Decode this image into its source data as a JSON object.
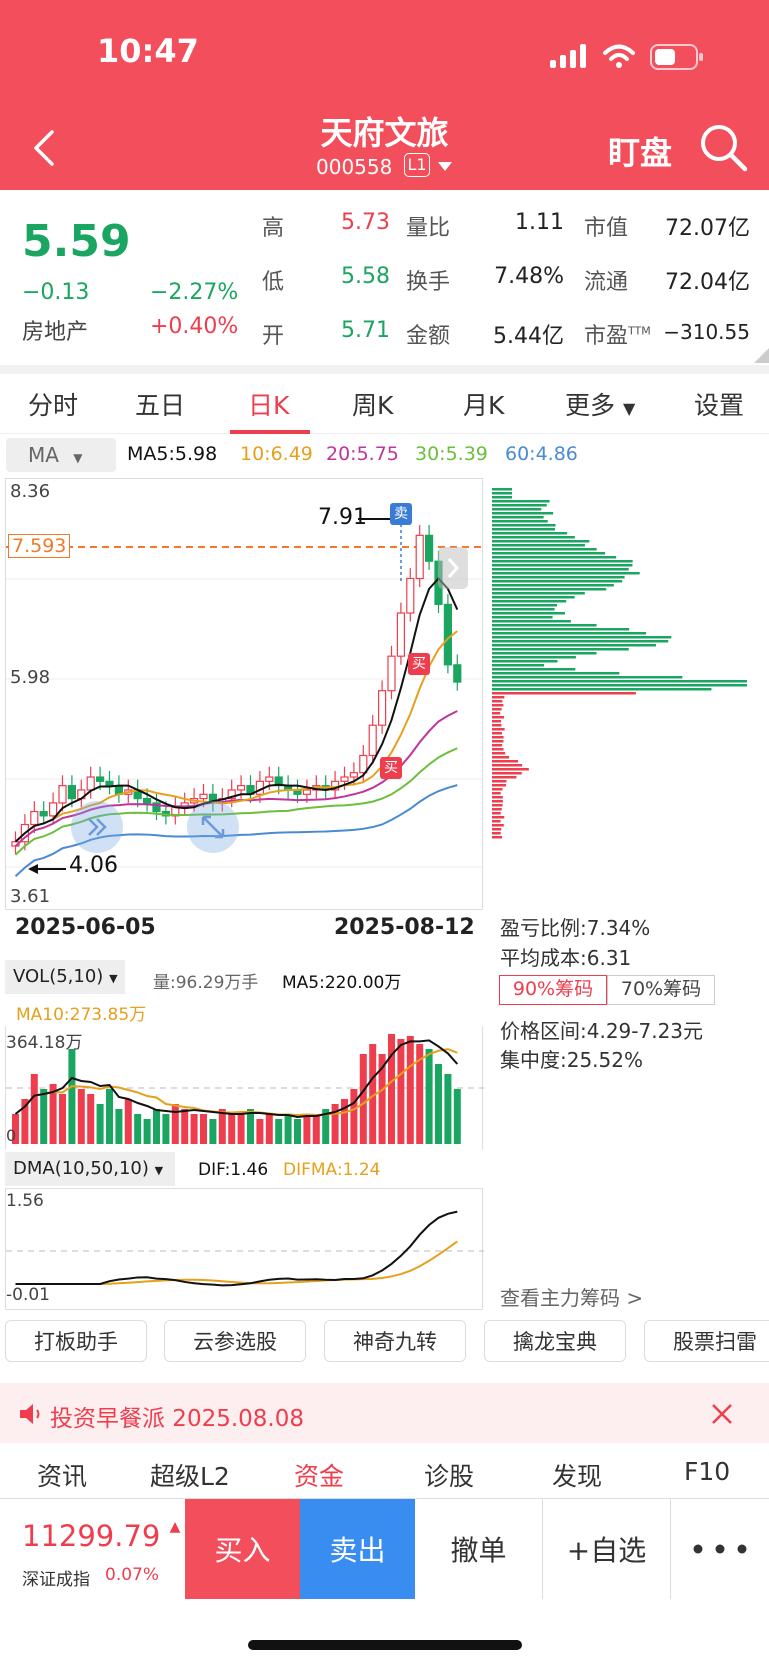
{
  "status": {
    "time": "10:47"
  },
  "header": {
    "title": "天府文旅",
    "code": "000558",
    "level": "L1",
    "watch": "盯盘"
  },
  "quote": {
    "price": "5.59",
    "change": "−0.13",
    "change_pct": "−2.27%",
    "sector": "房地产",
    "sector_pct": "+0.40%",
    "rows": [
      {
        "l1": "高",
        "v1": "5.73",
        "c1": "r",
        "l2": "量比",
        "v2": "1.11",
        "l3": "市值",
        "v3": "72.07亿"
      },
      {
        "l1": "低",
        "v1": "5.58",
        "c1": "g",
        "l2": "换手",
        "v2": "7.48%",
        "l3": "流通",
        "v3": "72.04亿"
      },
      {
        "l1": "开",
        "v1": "5.71",
        "c1": "g",
        "l2": "金额",
        "v2": "5.44亿",
        "l3": "市盈",
        "l3sup": "TTM",
        "v3": "−310.55"
      }
    ]
  },
  "tabs": [
    "分时",
    "五日",
    "日K",
    "周K",
    "月K",
    "更多",
    "设置"
  ],
  "ma": {
    "selector": "MA",
    "ma5": "MA5:5.98",
    "ma10": "10:6.49",
    "ma20": "20:5.75",
    "ma30": "30:5.39",
    "ma60": "60:4.86"
  },
  "kline": {
    "y_top": "8.36",
    "ref": "7.593",
    "y_mid": "5.98",
    "y_bot": "3.61",
    "high_label": "7.91",
    "low_label": "4.06",
    "sell_tag": "卖",
    "buy_tag": "买",
    "date_start": "2025-06-05",
    "date_end": "2025-08-12"
  },
  "chips": {
    "profit": "盈亏比例:7.34%",
    "avg_cost": "平均成本:6.31",
    "btn90": "90%筹码",
    "btn70": "70%筹码",
    "range": "价格区间:4.29-7.23元",
    "concentration": "集中度:25.52%",
    "more": "查看主力筹码 >"
  },
  "vol": {
    "selector": "VOL(5,10)",
    "qty": "量:96.29万手",
    "ma5": "MA5:220.00万",
    "ma10": "MA10:273.85万",
    "top": "364.18万",
    "zero": "0"
  },
  "dma": {
    "selector": "DMA(10,50,10)",
    "dif": "DIF:1.46",
    "difma": "DIFMA:1.24",
    "top": "1.56",
    "bot": "-0.01"
  },
  "tools": [
    "打板助手",
    "云参选股",
    "神奇九转",
    "擒龙宝典",
    "股票扫雷"
  ],
  "news": {
    "text": "投资早餐派 2025.08.08"
  },
  "bottom_tabs": [
    "资讯",
    "超级L2",
    "资金",
    "诊股",
    "发现",
    "F10"
  ],
  "index": {
    "value": "11299.79",
    "name": "深证成指",
    "pct": "0.07%"
  },
  "actions": {
    "buy": "买入",
    "sell": "卖出",
    "cancel": "撤单",
    "fav": "+自选"
  }
}
